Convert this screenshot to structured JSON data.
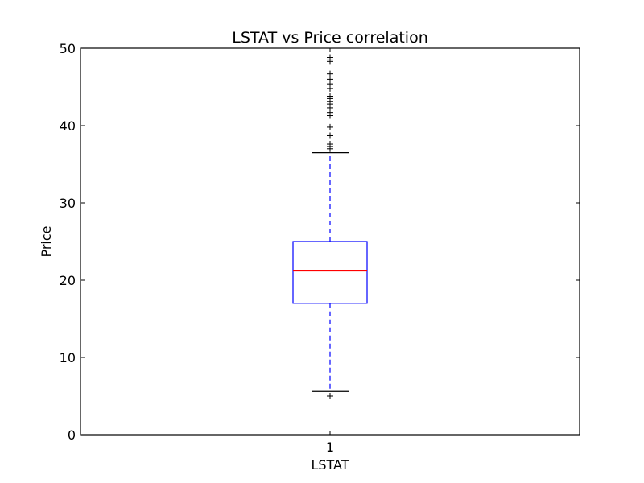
{
  "chart_data": {
    "type": "boxplot",
    "title": "LSTAT vs Price correlation",
    "xlabel": "LSTAT",
    "ylabel": "Price",
    "ylim": [
      0,
      50
    ],
    "yticks": [
      0,
      10,
      20,
      30,
      40,
      50
    ],
    "categories": [
      "1"
    ],
    "grid": false,
    "colors": {
      "box": "#0000ff",
      "median": "#ff0000",
      "whisker": "#0000ff",
      "cap": "#000000",
      "flier": "#000000",
      "frame": "#000000"
    },
    "boxes": [
      {
        "category": "1",
        "q1": 17.0,
        "median": 21.2,
        "q3": 25.0,
        "whisker_low": 5.6,
        "whisker_high": 36.5,
        "fliers": [
          5.0,
          37.0,
          37.3,
          37.6,
          38.7,
          39.8,
          41.3,
          41.7,
          42.3,
          42.8,
          43.1,
          43.5,
          43.8,
          44.8,
          45.4,
          46.0,
          46.7,
          48.3,
          48.5,
          48.8
        ]
      }
    ]
  }
}
